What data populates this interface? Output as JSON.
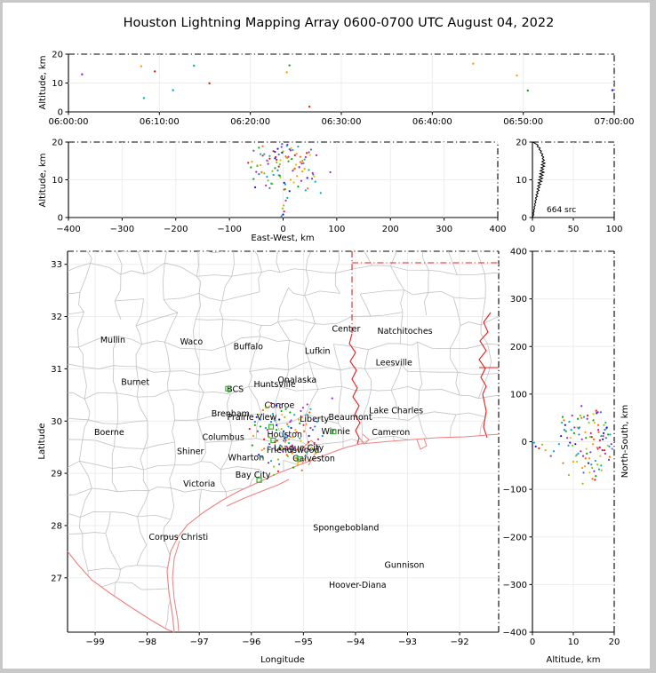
{
  "figure": {
    "title": "Houston Lightning Mapping Array 0600-0700 UTC August 04, 2022"
  },
  "palette": [
    "#1515e0",
    "#3d6fe0",
    "#00a6d6",
    "#00b5a0",
    "#00ae00",
    "#7ecb00",
    "#d9c400",
    "#ff9900",
    "#ff6a00",
    "#e31a1a",
    "#cf1fa8",
    "#8a2be2"
  ],
  "colors": {
    "city": "#1a1a1a",
    "special_city": "#f4a460",
    "bcs_label": "#8b1a1a",
    "offshore_label": "#2233cc",
    "station_marker": "#2fb52f",
    "state_border": "#e02020",
    "coastline": "#ef8080",
    "county_line": "#c2c2c2",
    "grid_line": "#ededed",
    "histogram_line": "#000000"
  },
  "chart_data": [
    {
      "id": "time_height",
      "type": "scatter",
      "ylabel": "Altitude, km",
      "x_ticks": [
        "06:00:00",
        "06:10:00",
        "06:20:00",
        "06:30:00",
        "06:40:00",
        "06:50:00",
        "07:00:00"
      ],
      "xlim_minutes": [
        0,
        60
      ],
      "y_ticks": [
        0,
        10,
        20
      ],
      "ylim": [
        0,
        20
      ],
      "points": [
        [
          1.5,
          13.0,
          11
        ],
        [
          8.0,
          15.8,
          7
        ],
        [
          8.3,
          4.8,
          3
        ],
        [
          9.5,
          14.0,
          9
        ],
        [
          11.5,
          7.5,
          2
        ],
        [
          13.8,
          16.0,
          3
        ],
        [
          15.5,
          9.9,
          9
        ],
        [
          24.0,
          13.7,
          7
        ],
        [
          24.3,
          16.1,
          4
        ],
        [
          26.5,
          1.8,
          9
        ],
        [
          44.5,
          16.7,
          7
        ],
        [
          49.3,
          12.6,
          7
        ],
        [
          50.5,
          7.4,
          4
        ],
        [
          59.8,
          7.5,
          0
        ]
      ]
    },
    {
      "id": "ew_height",
      "type": "scatter",
      "xlabel": "East-West, km",
      "ylabel": "Altitude, km",
      "x_ticks": [
        -400,
        -300,
        -200,
        -100,
        0,
        100,
        200,
        300,
        400
      ],
      "xlim": [
        -400,
        400
      ],
      "y_ticks": [
        0,
        10,
        20
      ],
      "ylim": [
        0,
        20
      ],
      "points_from": "sources(ew,alt)"
    },
    {
      "id": "source_histogram",
      "type": "line",
      "annotation": "664 src",
      "x_ticks": [
        0,
        50,
        100
      ],
      "xlim": [
        0,
        100
      ],
      "y_ticks": [
        0,
        10,
        20
      ],
      "ylim": [
        0,
        20
      ],
      "alt_step": 0.4,
      "counts": [
        0.3,
        0.8,
        1.5,
        1.0,
        2.2,
        1.4,
        2.8,
        2.0,
        3.5,
        2.6,
        4.2,
        3.0,
        5.0,
        3.8,
        6.2,
        4.4,
        7.0,
        5.2,
        8.1,
        5.8,
        9.0,
        6.4,
        10.2,
        7.0,
        11.5,
        7.6,
        12.4,
        8.4,
        13.0,
        9.0,
        14.2,
        9.6,
        13.6,
        10.4,
        14.8,
        11.0,
        15.3,
        11.6,
        14.6,
        12.2,
        13.8,
        11.2,
        12.6,
        9.8,
        11.0,
        8.2,
        9.4,
        6.0,
        6.8,
        3.4,
        0.8
      ]
    },
    {
      "id": "map",
      "type": "scatter",
      "xlabel": "Longitude",
      "ylabel": "Latitude",
      "x_ticks": [
        -99,
        -98,
        -97,
        -96,
        -95,
        -94,
        -93,
        -92
      ],
      "xlim": [
        -99.53,
        -91.25
      ],
      "y_ticks": [
        27,
        28,
        29,
        30,
        31,
        32,
        33
      ],
      "ylim": [
        25.96,
        33.25
      ],
      "points_from": "sources(lon,lat)",
      "cities": [
        {
          "n": "Mullin",
          "lon": -98.66,
          "lat": 31.55,
          "c": "special"
        },
        {
          "n": "Waco",
          "lon": -97.15,
          "lat": 31.52
        },
        {
          "n": "Buffalo",
          "lon": -96.06,
          "lat": 31.42
        },
        {
          "n": "Lufkin",
          "lon": -94.73,
          "lat": 31.34
        },
        {
          "n": "Center",
          "lon": -94.18,
          "lat": 31.76
        },
        {
          "n": "Natchitoches",
          "lon": -93.05,
          "lat": 31.72
        },
        {
          "n": "Leesville",
          "lon": -93.26,
          "lat": 31.12
        },
        {
          "n": "Burnet",
          "lon": -98.23,
          "lat": 30.74
        },
        {
          "n": "Huntsville",
          "lon": -95.55,
          "lat": 30.7
        },
        {
          "n": "Onalaska",
          "lon": -95.12,
          "lat": 30.79
        },
        {
          "n": "BCS",
          "lon": -96.31,
          "lat": 30.61,
          "c": "bcs"
        },
        {
          "n": "Conroe",
          "lon": -95.46,
          "lat": 30.3
        },
        {
          "n": "Brenham",
          "lon": -96.4,
          "lat": 30.14
        },
        {
          "n": "Prairie View",
          "lon": -95.99,
          "lat": 30.07
        },
        {
          "n": "Liberty",
          "lon": -94.79,
          "lat": 30.04
        },
        {
          "n": "Beaumont",
          "lon": -94.1,
          "lat": 30.07
        },
        {
          "n": "Lake Charles",
          "lon": -93.22,
          "lat": 30.2
        },
        {
          "n": "Boerne",
          "lon": -98.73,
          "lat": 29.78
        },
        {
          "n": "Columbus",
          "lon": -96.54,
          "lat": 29.69
        },
        {
          "n": "Houston",
          "lon": -95.36,
          "lat": 29.74,
          "c": "special"
        },
        {
          "n": "Winnie",
          "lon": -94.38,
          "lat": 29.8
        },
        {
          "n": "Cameron",
          "lon": -93.32,
          "lat": 29.78
        },
        {
          "n": "Shiner",
          "lon": -97.17,
          "lat": 29.42
        },
        {
          "n": "Wharton",
          "lon": -96.1,
          "lat": 29.3
        },
        {
          "n": "League City",
          "lon": -95.09,
          "lat": 29.49
        },
        {
          "n": "Friendswood",
          "lon": -95.2,
          "lat": 29.44
        },
        {
          "n": "Galveston",
          "lon": -94.8,
          "lat": 29.28
        },
        {
          "n": "Bay City",
          "lon": -95.97,
          "lat": 28.97
        },
        {
          "n": "Victoria",
          "lon": -97.0,
          "lat": 28.8
        },
        {
          "n": "Corpus Christi",
          "lon": -97.4,
          "lat": 27.78
        },
        {
          "n": "Spongebobland",
          "lon": -94.18,
          "lat": 27.96,
          "c": "offshore"
        },
        {
          "n": "Gunnison",
          "lon": -93.06,
          "lat": 27.24,
          "c": "offshore"
        },
        {
          "n": "Hoover-Diana",
          "lon": -93.96,
          "lat": 26.86,
          "c": "offshore"
        }
      ],
      "stations": [
        [
          -96.45,
          30.62
        ],
        [
          -95.62,
          29.89
        ],
        [
          -95.58,
          29.63
        ],
        [
          -94.42,
          29.8
        ],
        [
          -95.08,
          29.27
        ],
        [
          -95.85,
          28.87
        ]
      ]
    },
    {
      "id": "ns_height",
      "type": "scatter",
      "xlabel": "Altitude, km",
      "ylabel": "North-South, km",
      "x_ticks": [
        0,
        10,
        20
      ],
      "xlim": [
        0,
        20
      ],
      "y_ticks": [
        400,
        300,
        200,
        100,
        0,
        -100,
        -200,
        -300,
        -400
      ],
      "ylim": [
        -400,
        400
      ],
      "points_from": "sources(alt,ns)"
    }
  ],
  "sources": {
    "center_lon": -95.36,
    "center_lat": 29.76,
    "km_per_deg_lon": 96.4,
    "km_per_deg_lat": 111,
    "points": [
      [
        -2,
        5,
        17.2,
        0
      ],
      [
        8,
        -12,
        15.8,
        7
      ],
      [
        -15,
        8,
        13.1,
        4
      ],
      [
        22,
        3,
        16.5,
        9
      ],
      [
        -8,
        -25,
        11.2,
        2
      ],
      [
        35,
        18,
        14.3,
        10
      ],
      [
        -28,
        -8,
        9.8,
        5
      ],
      [
        12,
        28,
        18.1,
        1
      ],
      [
        4,
        -45,
        7.5,
        8
      ],
      [
        -35,
        12,
        16.8,
        3
      ],
      [
        18,
        -30,
        12.4,
        11
      ],
      [
        -5,
        40,
        15.2,
        6
      ],
      [
        45,
        -5,
        10.5,
        0
      ],
      [
        -18,
        -18,
        17.6,
        9
      ],
      [
        28,
        22,
        8.2,
        4
      ],
      [
        -42,
        -35,
        13.9,
        7
      ],
      [
        7,
        15,
        19.0,
        2
      ],
      [
        55,
        -20,
        11.8,
        10
      ],
      [
        -12,
        -55,
        14.6,
        5
      ],
      [
        32,
        35,
        16.1,
        8
      ],
      [
        -25,
        25,
        7.8,
        1
      ],
      [
        15,
        -8,
        18.4,
        6
      ],
      [
        -50,
        5,
        12.1,
        11
      ],
      [
        40,
        -40,
        15.4,
        3
      ],
      [
        2,
        -2,
        9.2,
        0
      ],
      [
        -8,
        55,
        13.5,
        9
      ],
      [
        25,
        -60,
        16.9,
        7
      ],
      [
        -30,
        -28,
        10.8,
        2
      ],
      [
        10,
        45,
        14.9,
        4
      ],
      [
        48,
        12,
        17.3,
        10
      ],
      [
        -20,
        -70,
        8.9,
        5
      ],
      [
        5,
        20,
        16.2,
        8
      ],
      [
        -45,
        30,
        11.5,
        1
      ],
      [
        30,
        -15,
        13.2,
        6
      ],
      [
        -3,
        -38,
        18.7,
        11
      ],
      [
        60,
        25,
        9.5,
        3
      ],
      [
        -15,
        60,
        15.7,
        0
      ],
      [
        20,
        -52,
        12.8,
        7
      ],
      [
        -38,
        -12,
        16.4,
        9
      ],
      [
        42,
        40,
        7.2,
        2
      ],
      [
        -6,
        10,
        14.1,
        5
      ],
      [
        14,
        -25,
        17.8,
        10
      ],
      [
        -55,
        18,
        10.2,
        4
      ],
      [
        36,
        5,
        15.0,
        8
      ],
      [
        -10,
        -65,
        12.5,
        1
      ],
      [
        50,
        -30,
        16.6,
        6
      ],
      [
        -22,
        42,
        9.0,
        3
      ],
      [
        8,
        -5,
        19.3,
        11
      ],
      [
        -48,
        -45,
        13.7,
        0
      ],
      [
        26,
        30,
        11.0,
        7
      ],
      [
        -14,
        -15,
        16.0,
        9
      ],
      [
        38,
        -48,
        14.4,
        2
      ],
      [
        0,
        35,
        17.5,
        5
      ],
      [
        -32,
        8,
        8.5,
        10
      ],
      [
        16,
        -72,
        15.5,
        4
      ],
      [
        -40,
        50,
        12.0,
        8
      ],
      [
        52,
        8,
        18.0,
        1
      ],
      [
        -5,
        -30,
        10.6,
        6
      ],
      [
        30,
        48,
        13.4,
        11
      ],
      [
        -25,
        -58,
        16.3,
        3
      ],
      [
        12,
        12,
        7.0,
        0
      ],
      [
        -58,
        -5,
        14.8,
        7
      ],
      [
        44,
        -18,
        17.1,
        9
      ],
      [
        -18,
        28,
        11.3,
        2
      ],
      [
        6,
        -48,
        15.9,
        5
      ],
      [
        34,
        55,
        9.7,
        10
      ],
      [
        -45,
        15,
        18.5,
        4
      ],
      [
        22,
        -35,
        13.0,
        8
      ],
      [
        -8,
        62,
        16.7,
        1
      ],
      [
        58,
        -42,
        10.9,
        6
      ],
      [
        -28,
        -22,
        14.2,
        11
      ],
      [
        18,
        40,
        17.9,
        3
      ],
      [
        -52,
        35,
        8.0,
        0
      ],
      [
        40,
        20,
        12.9,
        7
      ],
      [
        -12,
        -80,
        15.3,
        9
      ],
      [
        28,
        -10,
        18.8,
        2
      ],
      [
        -35,
        55,
        11.7,
        5
      ],
      [
        10,
        25,
        16.1,
        10
      ],
      [
        -60,
        -25,
        13.3,
        4
      ],
      [
        46,
        45,
        7.7,
        8
      ],
      [
        -2,
        -15,
        19.5,
        1
      ],
      [
        24,
        -65,
        14.0,
        6
      ],
      [
        -42,
        -50,
        16.8,
        3
      ],
      [
        54,
        30,
        10.3,
        11
      ],
      [
        -15,
        18,
        17.4,
        0
      ],
      [
        36,
        -55,
        12.2,
        7
      ],
      [
        -25,
        65,
        15.6,
        9
      ],
      [
        4,
        -8,
        8.8,
        2
      ],
      [
        -48,
        40,
        13.8,
        5
      ],
      [
        62,
        -12,
        16.5,
        10
      ],
      [
        -6,
        48,
        11.1,
        4
      ],
      [
        32,
        -78,
        14.7,
        8
      ],
      [
        -55,
        25,
        17.7,
        1
      ],
      [
        20,
        8,
        9.3,
        6
      ],
      [
        -30,
        -62,
        15.1,
        11
      ],
      [
        48,
        52,
        12.6,
        3
      ],
      [
        -10,
        30,
        18.2,
        0
      ],
      [
        14,
        -42,
        10.0,
        7
      ],
      [
        -65,
        10,
        14.5,
        9
      ],
      [
        70,
        -5,
        6.5,
        2
      ],
      [
        -20,
        -88,
        12.3,
        5
      ],
      [
        42,
        62,
        16.0,
        10
      ],
      [
        2,
        52,
        7.4,
        4
      ],
      [
        -38,
        -32,
        18.9,
        8
      ],
      [
        56,
        15,
        11.4,
        1
      ],
      [
        -28,
        58,
        14.9,
        6
      ],
      [
        88,
        75,
        12.0,
        11
      ],
      [
        8,
        -20,
        5.2,
        3
      ],
      [
        0,
        -10,
        0.8,
        0
      ],
      [
        2,
        -14,
        1.6,
        9
      ],
      [
        -1,
        -6,
        2.4,
        5
      ],
      [
        1,
        -18,
        3.2,
        7
      ],
      [
        -3,
        -2,
        0.4,
        2
      ],
      [
        5,
        -30,
        4.5,
        10
      ]
    ]
  }
}
